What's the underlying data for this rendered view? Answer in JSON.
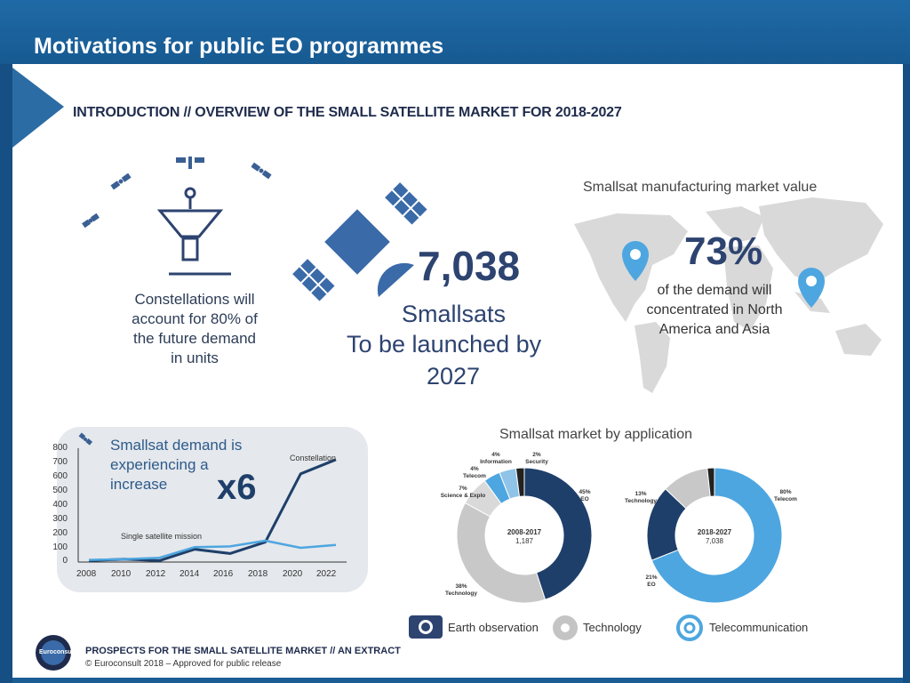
{
  "slide": {
    "title": "Motivations for public EO programmes"
  },
  "infographic": {
    "intro": "INTRODUCTION // OVERVIEW OF THE SMALL SATELLITE MARKET FOR 2018-2027",
    "constellation_text": "Constellations will account for 80% of the future demand in units",
    "launch_count": "7,038",
    "launch_line1": "Smallsats",
    "launch_line2": "To be launched by",
    "launch_line3": "2027",
    "map_title": "Smallsat manufacturing market value",
    "map_pct": "73%",
    "map_text": "of the demand will concentrated in North America and Asia"
  },
  "demand_chart": {
    "title": "Smallsat demand is experiencing a increase",
    "multiplier": "x6",
    "series_labels": {
      "constellation": "Constellation",
      "single": "Single satellite mission"
    },
    "y_ticks": [
      "800",
      "700",
      "600",
      "500",
      "400",
      "300",
      "200",
      "100",
      "0"
    ],
    "x_ticks": [
      "2008",
      "2010",
      "2012",
      "2014",
      "2016",
      "2018",
      "2020",
      "2022"
    ]
  },
  "application_chart": {
    "title": "Smallsat market by application",
    "left": {
      "center_line1": "2008-2017",
      "center_line2": "1,187",
      "labels": {
        "eo": "45%\nEO",
        "tech": "38%\nTechnology",
        "sci": "7%\nScience & Explo",
        "tel": "4%\nTelecom",
        "info": "4%\nInformation",
        "sec": "2%\nSecurity"
      }
    },
    "right": {
      "center_line1": "2018-2027",
      "center_line2": "7,038",
      "labels": {
        "tel": "80%\nTelecom",
        "tech": "13%\nTechnology",
        "eo": "21%\nEO"
      }
    },
    "legend": {
      "eo": "Earth observation",
      "tech": "Technology",
      "tel": "Telecommunication"
    }
  },
  "footer": {
    "logo": "Euroconsult",
    "line1": "PROSPECTS FOR THE SMALL SATELLITE MARKET // AN EXTRACT",
    "line2": "© Euroconsult 2018 – Approved for public release"
  },
  "chart_data": [
    {
      "type": "line",
      "title": "Smallsat demand is experiencing a increase",
      "x": [
        2008,
        2010,
        2012,
        2014,
        2016,
        2018,
        2020,
        2022
      ],
      "series": [
        {
          "name": "Constellation",
          "values": [
            10,
            20,
            10,
            90,
            60,
            140,
            620,
            720
          ]
        },
        {
          "name": "Single satellite mission",
          "values": [
            15,
            20,
            30,
            105,
            110,
            150,
            100,
            120
          ]
        }
      ],
      "ylim": [
        0,
        800
      ]
    },
    {
      "type": "pie",
      "title": "2008-2017",
      "categories": [
        "EO",
        "Technology",
        "Science & Explo",
        "Telecom",
        "Information",
        "Security"
      ],
      "values": [
        45,
        38,
        7,
        4,
        4,
        2
      ]
    },
    {
      "type": "pie",
      "title": "2018-2027",
      "categories": [
        "Telecom",
        "EO",
        "Technology"
      ],
      "values": [
        80,
        21,
        13
      ]
    }
  ]
}
